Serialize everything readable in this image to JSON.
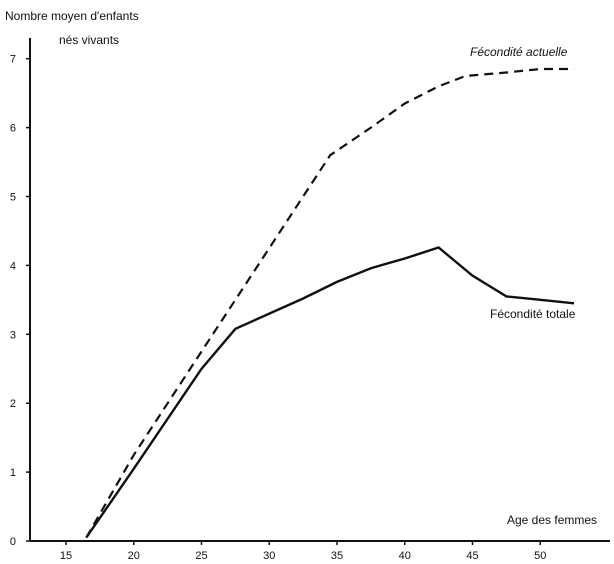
{
  "chart_data": {
    "type": "line",
    "ylabel_line1": "Nombre moyen d'enfants",
    "ylabel_line2": "nés vivants",
    "xlabel": "Age des femmes",
    "xlim": [
      12,
      55
    ],
    "ylim": [
      0,
      7.2
    ],
    "x_ticks": [
      15,
      20,
      25,
      30,
      35,
      40,
      45,
      50
    ],
    "y_ticks": [
      0,
      1,
      2,
      3,
      4,
      5,
      6,
      7
    ],
    "grid": false,
    "series": [
      {
        "name": "Fécondité actuelle",
        "style": "dashed",
        "x": [
          16.5,
          20,
          25,
          27.5,
          32.5,
          34.5,
          37.5,
          40,
          42.5,
          44.5,
          47.5,
          50,
          52.5
        ],
        "y": [
          0.05,
          1.25,
          2.75,
          3.5,
          5.0,
          5.6,
          6.0,
          6.35,
          6.6,
          6.75,
          6.8,
          6.85,
          6.85
        ]
      },
      {
        "name": "Fécondité totale",
        "style": "solid",
        "x": [
          16.5,
          20,
          25,
          27.5,
          30,
          32.5,
          35,
          37.5,
          40,
          42.5,
          45,
          47.5,
          50,
          52.5
        ],
        "y": [
          0.05,
          1.05,
          2.5,
          3.08,
          3.3,
          3.52,
          3.76,
          3.96,
          4.1,
          4.26,
          3.85,
          3.55,
          3.5,
          3.45
        ]
      }
    ]
  }
}
